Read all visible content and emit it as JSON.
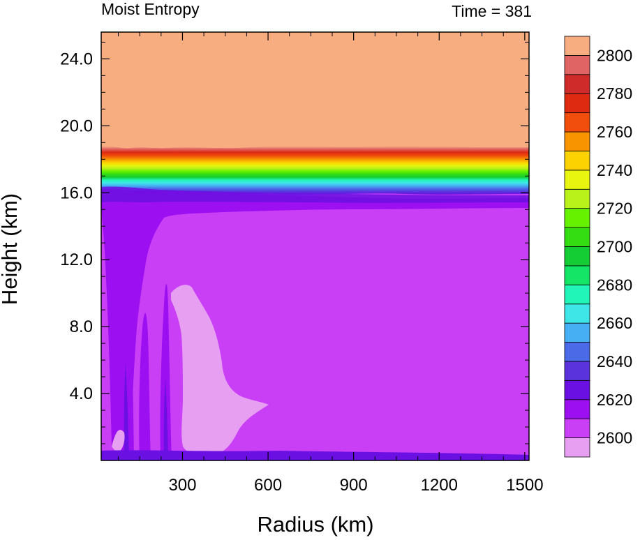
{
  "chart_data": {
    "type": "contour",
    "title_left": "Moist Entropy",
    "title_right": "Time = 381",
    "xlabel": "Radius (km)",
    "ylabel": "Height (km)",
    "xlim": [
      15,
      1515
    ],
    "ylim": [
      0,
      25.6
    ],
    "xticks": [
      300,
      600,
      900,
      1200,
      1500
    ],
    "yticks": [
      4.0,
      8.0,
      12.0,
      16.0,
      20.0,
      24.0
    ],
    "colorbar": {
      "levels": [
        2600,
        2610,
        2620,
        2630,
        2640,
        2650,
        2660,
        2670,
        2680,
        2690,
        2700,
        2710,
        2720,
        2730,
        2740,
        2750,
        2760,
        2770,
        2780,
        2790,
        2800
      ],
      "tick_labels": [
        2600,
        2620,
        2640,
        2660,
        2680,
        2700,
        2720,
        2740,
        2760,
        2780,
        2800
      ],
      "colors": [
        "#e79ff2",
        "#c93ff6",
        "#9b0ff0",
        "#6b10e2",
        "#5a33dd",
        "#4a6ae8",
        "#46aef2",
        "#3fe6e8",
        "#22f5b8",
        "#15e566",
        "#14cc33",
        "#33dd11",
        "#66f100",
        "#b8f21a",
        "#e8f50e",
        "#fcd200",
        "#f89400",
        "#f14d0c",
        "#dd2a10",
        "#cf2b2b",
        "#e06464",
        "#f8ad80"
      ]
    },
    "field_description_levels": {
      "upper_layer_above_km": 18.6,
      "upper_value": 2805,
      "lower_layer_value": 2605
    }
  }
}
